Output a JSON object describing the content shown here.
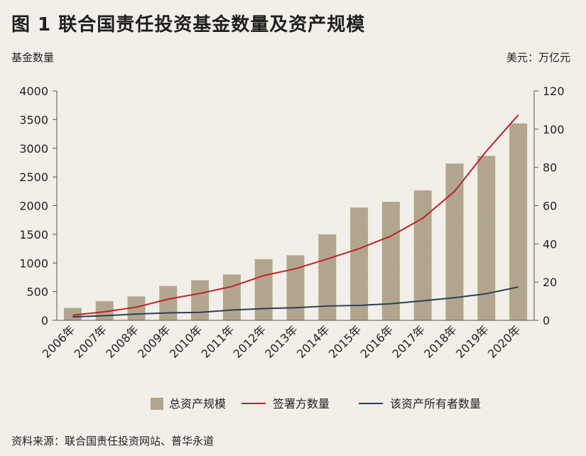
{
  "title": "图 1  联合国责任投资基金数量及资产规模",
  "source": "资料来源：联合国责任投资网站、普华永道",
  "colors": {
    "background": "#f2efe8",
    "bar": "#b5a890",
    "signatories_line": "#c0202a",
    "asset_owners_line": "#2a3f5a",
    "axis": "#555555"
  },
  "chart_data": {
    "type": "bar",
    "categories": [
      "2006年",
      "2007年",
      "2008年",
      "2009年",
      "2010年",
      "2011年",
      "2012年",
      "2013年",
      "2014年",
      "2015年",
      "2016年",
      "2017年",
      "2018年",
      "2019年",
      "2020年"
    ],
    "ylabel": "基金数量",
    "y2label": "美元：万亿元",
    "ylim": [
      0,
      4000
    ],
    "y2lim": [
      0,
      120
    ],
    "yticks": [
      0,
      500,
      1000,
      1500,
      2000,
      2500,
      3000,
      3500,
      4000
    ],
    "y2ticks": [
      0,
      20,
      40,
      60,
      80,
      100,
      120
    ],
    "legend_position": "bottom",
    "series": [
      {
        "name": "总资产规模",
        "type": "bar",
        "axis": "right",
        "values": [
          6.5,
          10,
          12.5,
          18,
          21,
          24,
          32,
          34,
          45,
          59,
          62,
          68,
          82,
          86,
          103
        ]
      },
      {
        "name": "签署方数量",
        "type": "line",
        "axis": "left",
        "values": [
          90,
          150,
          230,
          370,
          470,
          590,
          780,
          900,
          1070,
          1250,
          1470,
          1780,
          2250,
          2950,
          3580
        ]
      },
      {
        "name": "该资产所有者数量",
        "type": "line",
        "axis": "left",
        "values": [
          60,
          80,
          110,
          130,
          140,
          180,
          205,
          220,
          250,
          260,
          290,
          340,
          395,
          465,
          580
        ]
      }
    ]
  }
}
